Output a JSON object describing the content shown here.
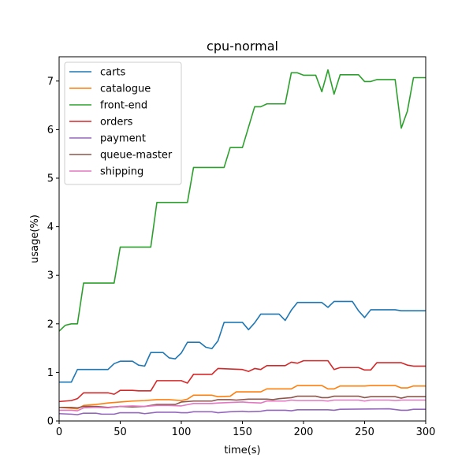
{
  "chart_data": {
    "type": "line",
    "title": "cpu-normal",
    "xlabel": "time(s)",
    "ylabel": "usage(%)",
    "xlim": [
      0,
      300
    ],
    "ylim": [
      0,
      7.5
    ],
    "xticks": [
      0,
      50,
      100,
      150,
      200,
      250,
      300
    ],
    "yticks": [
      0,
      1,
      2,
      3,
      4,
      5,
      6,
      7
    ],
    "grid": false,
    "legend_position": "top-left",
    "series": [
      {
        "name": "carts",
        "color": "#1f77b4",
        "points": [
          [
            0,
            0.8
          ],
          [
            10,
            0.8
          ],
          [
            15,
            1.06
          ],
          [
            40,
            1.06
          ],
          [
            45,
            1.18
          ],
          [
            50,
            1.23
          ],
          [
            60,
            1.23
          ],
          [
            65,
            1.15
          ],
          [
            70,
            1.13
          ],
          [
            75,
            1.41
          ],
          [
            85,
            1.41
          ],
          [
            90,
            1.3
          ],
          [
            95,
            1.28
          ],
          [
            100,
            1.4
          ],
          [
            105,
            1.62
          ],
          [
            115,
            1.62
          ],
          [
            120,
            1.52
          ],
          [
            125,
            1.49
          ],
          [
            130,
            1.65
          ],
          [
            135,
            2.03
          ],
          [
            150,
            2.03
          ],
          [
            155,
            1.88
          ],
          [
            160,
            2.02
          ],
          [
            165,
            2.2
          ],
          [
            180,
            2.2
          ],
          [
            185,
            2.07
          ],
          [
            190,
            2.28
          ],
          [
            195,
            2.44
          ],
          [
            215,
            2.44
          ],
          [
            220,
            2.34
          ],
          [
            225,
            2.46
          ],
          [
            240,
            2.46
          ],
          [
            245,
            2.27
          ],
          [
            250,
            2.13
          ],
          [
            255,
            2.29
          ],
          [
            275,
            2.29
          ],
          [
            280,
            2.27
          ],
          [
            300,
            2.27
          ]
        ]
      },
      {
        "name": "catalogue",
        "color": "#ff7f0e",
        "points": [
          [
            0,
            0.28
          ],
          [
            10,
            0.26
          ],
          [
            15,
            0.25
          ],
          [
            20,
            0.32
          ],
          [
            30,
            0.34
          ],
          [
            40,
            0.37
          ],
          [
            50,
            0.39
          ],
          [
            60,
            0.41
          ],
          [
            70,
            0.42
          ],
          [
            80,
            0.44
          ],
          [
            90,
            0.44
          ],
          [
            100,
            0.42
          ],
          [
            105,
            0.45
          ],
          [
            110,
            0.53
          ],
          [
            125,
            0.53
          ],
          [
            130,
            0.5
          ],
          [
            140,
            0.51
          ],
          [
            145,
            0.6
          ],
          [
            165,
            0.6
          ],
          [
            170,
            0.66
          ],
          [
            190,
            0.66
          ],
          [
            195,
            0.73
          ],
          [
            215,
            0.73
          ],
          [
            220,
            0.66
          ],
          [
            225,
            0.66
          ],
          [
            230,
            0.72
          ],
          [
            250,
            0.72
          ],
          [
            255,
            0.73
          ],
          [
            275,
            0.73
          ],
          [
            280,
            0.68
          ],
          [
            285,
            0.68
          ],
          [
            290,
            0.72
          ],
          [
            300,
            0.72
          ]
        ]
      },
      {
        "name": "front-end",
        "color": "#2ca02c",
        "points": [
          [
            0,
            1.85
          ],
          [
            5,
            1.97
          ],
          [
            10,
            2.0
          ],
          [
            15,
            2.0
          ],
          [
            20,
            2.84
          ],
          [
            45,
            2.84
          ],
          [
            50,
            3.58
          ],
          [
            75,
            3.58
          ],
          [
            80,
            4.5
          ],
          [
            105,
            4.5
          ],
          [
            110,
            5.22
          ],
          [
            135,
            5.22
          ],
          [
            140,
            5.63
          ],
          [
            150,
            5.63
          ],
          [
            160,
            6.47
          ],
          [
            165,
            6.47
          ],
          [
            170,
            6.53
          ],
          [
            185,
            6.53
          ],
          [
            190,
            7.17
          ],
          [
            195,
            7.17
          ],
          [
            200,
            7.12
          ],
          [
            210,
            7.12
          ],
          [
            215,
            6.78
          ],
          [
            220,
            7.23
          ],
          [
            225,
            6.73
          ],
          [
            230,
            7.13
          ],
          [
            245,
            7.13
          ],
          [
            250,
            6.99
          ],
          [
            255,
            6.99
          ],
          [
            260,
            7.03
          ],
          [
            275,
            7.03
          ],
          [
            280,
            6.03
          ],
          [
            285,
            6.38
          ],
          [
            290,
            7.07
          ],
          [
            300,
            7.07
          ]
        ]
      },
      {
        "name": "orders",
        "color": "#d62728",
        "points": [
          [
            0,
            0.4
          ],
          [
            10,
            0.42
          ],
          [
            15,
            0.46
          ],
          [
            20,
            0.58
          ],
          [
            40,
            0.58
          ],
          [
            45,
            0.55
          ],
          [
            50,
            0.63
          ],
          [
            60,
            0.63
          ],
          [
            65,
            0.62
          ],
          [
            75,
            0.62
          ],
          [
            80,
            0.83
          ],
          [
            100,
            0.83
          ],
          [
            105,
            0.78
          ],
          [
            110,
            0.96
          ],
          [
            125,
            0.96
          ],
          [
            130,
            1.08
          ],
          [
            150,
            1.06
          ],
          [
            155,
            1.02
          ],
          [
            160,
            1.08
          ],
          [
            165,
            1.06
          ],
          [
            170,
            1.14
          ],
          [
            185,
            1.14
          ],
          [
            190,
            1.21
          ],
          [
            195,
            1.19
          ],
          [
            200,
            1.24
          ],
          [
            220,
            1.24
          ],
          [
            225,
            1.06
          ],
          [
            230,
            1.1
          ],
          [
            245,
            1.1
          ],
          [
            250,
            1.05
          ],
          [
            255,
            1.05
          ],
          [
            260,
            1.2
          ],
          [
            280,
            1.2
          ],
          [
            285,
            1.15
          ],
          [
            290,
            1.13
          ],
          [
            300,
            1.13
          ]
        ]
      },
      {
        "name": "payment",
        "color": "#9467bd",
        "points": [
          [
            0,
            0.15
          ],
          [
            10,
            0.14
          ],
          [
            15,
            0.13
          ],
          [
            20,
            0.16
          ],
          [
            30,
            0.16
          ],
          [
            35,
            0.14
          ],
          [
            45,
            0.14
          ],
          [
            50,
            0.17
          ],
          [
            65,
            0.17
          ],
          [
            70,
            0.15
          ],
          [
            80,
            0.18
          ],
          [
            95,
            0.18
          ],
          [
            100,
            0.17
          ],
          [
            105,
            0.17
          ],
          [
            110,
            0.19
          ],
          [
            125,
            0.19
          ],
          [
            130,
            0.17
          ],
          [
            140,
            0.19
          ],
          [
            150,
            0.2
          ],
          [
            155,
            0.19
          ],
          [
            165,
            0.2
          ],
          [
            170,
            0.22
          ],
          [
            185,
            0.22
          ],
          [
            190,
            0.21
          ],
          [
            195,
            0.23
          ],
          [
            220,
            0.23
          ],
          [
            225,
            0.22
          ],
          [
            230,
            0.24
          ],
          [
            270,
            0.25
          ],
          [
            280,
            0.22
          ],
          [
            285,
            0.22
          ],
          [
            290,
            0.24
          ],
          [
            300,
            0.24
          ]
        ]
      },
      {
        "name": "queue-master",
        "color": "#8c564b",
        "points": [
          [
            0,
            0.28
          ],
          [
            10,
            0.28
          ],
          [
            15,
            0.27
          ],
          [
            20,
            0.3
          ],
          [
            30,
            0.3
          ],
          [
            40,
            0.28
          ],
          [
            50,
            0.3
          ],
          [
            60,
            0.29
          ],
          [
            70,
            0.3
          ],
          [
            80,
            0.34
          ],
          [
            95,
            0.34
          ],
          [
            100,
            0.39
          ],
          [
            110,
            0.41
          ],
          [
            125,
            0.41
          ],
          [
            130,
            0.44
          ],
          [
            140,
            0.44
          ],
          [
            145,
            0.43
          ],
          [
            155,
            0.45
          ],
          [
            170,
            0.45
          ],
          [
            175,
            0.44
          ],
          [
            180,
            0.46
          ],
          [
            190,
            0.48
          ],
          [
            195,
            0.51
          ],
          [
            210,
            0.51
          ],
          [
            215,
            0.48
          ],
          [
            220,
            0.48
          ],
          [
            225,
            0.51
          ],
          [
            245,
            0.51
          ],
          [
            250,
            0.48
          ],
          [
            255,
            0.5
          ],
          [
            275,
            0.5
          ],
          [
            280,
            0.47
          ],
          [
            285,
            0.5
          ],
          [
            300,
            0.5
          ]
        ]
      },
      {
        "name": "shipping",
        "color": "#e377c2",
        "points": [
          [
            0,
            0.22
          ],
          [
            10,
            0.22
          ],
          [
            15,
            0.21
          ],
          [
            20,
            0.27
          ],
          [
            30,
            0.28
          ],
          [
            40,
            0.27
          ],
          [
            50,
            0.3
          ],
          [
            60,
            0.31
          ],
          [
            70,
            0.3
          ],
          [
            80,
            0.32
          ],
          [
            90,
            0.32
          ],
          [
            100,
            0.31
          ],
          [
            110,
            0.36
          ],
          [
            125,
            0.36
          ],
          [
            130,
            0.37
          ],
          [
            140,
            0.38
          ],
          [
            150,
            0.39
          ],
          [
            155,
            0.38
          ],
          [
            165,
            0.37
          ],
          [
            170,
            0.41
          ],
          [
            185,
            0.41
          ],
          [
            190,
            0.43
          ],
          [
            195,
            0.42
          ],
          [
            215,
            0.42
          ],
          [
            220,
            0.41
          ],
          [
            225,
            0.43
          ],
          [
            245,
            0.43
          ],
          [
            250,
            0.41
          ],
          [
            255,
            0.43
          ],
          [
            270,
            0.43
          ],
          [
            275,
            0.42
          ],
          [
            280,
            0.43
          ],
          [
            300,
            0.43
          ]
        ]
      }
    ]
  }
}
